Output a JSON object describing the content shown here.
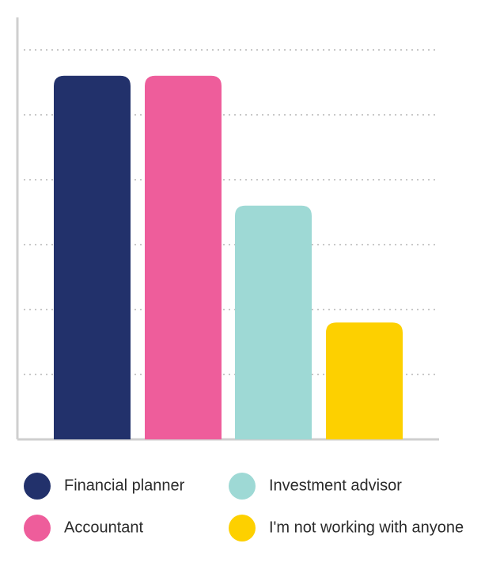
{
  "chart_data": {
    "type": "bar",
    "categories": [
      "Financial planner",
      "Accountant",
      "Investment advisor",
      "I'm not working with anyone"
    ],
    "values": [
      5.6,
      5.6,
      3.6,
      1.8
    ],
    "colors": [
      "#22316b",
      "#ee5d9b",
      "#9ed9d5",
      "#fdd000"
    ],
    "ylim": [
      0,
      6.5
    ],
    "yticks": [
      1,
      2,
      3,
      4,
      5,
      6
    ],
    "grid": true
  }
}
